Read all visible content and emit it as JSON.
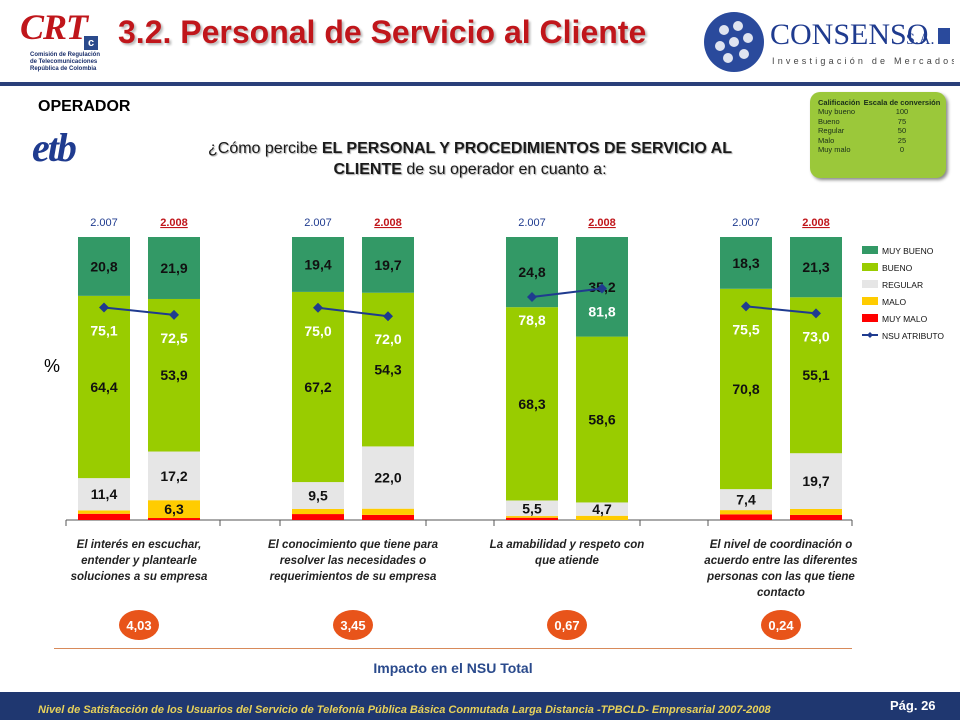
{
  "header": {
    "title": "3.2. Personal de Servicio al Cliente",
    "crt_logo_text": "CRT",
    "crt_logo_box": "c",
    "crt_caption": "Comisión de Regulación de Telecomunicaciones República de Colombia",
    "consenso_name": "CONSENSO",
    "consenso_suffix": "S.A.",
    "consenso_tagline": "Investigación de Mercados"
  },
  "operator": {
    "label": "OPERADOR",
    "logo_text": "etb"
  },
  "question": {
    "prefix": "¿Cómo percibe ",
    "bold_part": "EL PERSONAL Y PROCEDIMIENTOS DE SERVICIO AL CLIENTE",
    "suffix": " de su operador en cuanto a:"
  },
  "scale_table": {
    "headers": [
      "Calificación",
      "Escala de conversión"
    ],
    "rows": [
      [
        "Muy bueno",
        "100"
      ],
      [
        "Bueno",
        "75"
      ],
      [
        "Regular",
        "50"
      ],
      [
        "Malo",
        "25"
      ],
      [
        "Muy malo",
        "0"
      ]
    ]
  },
  "colors": {
    "muy_bueno": "#339966",
    "bueno": "#99cc00",
    "regular": "#e6e6e6",
    "malo": "#ffcc00",
    "muy_malo": "#ff0000",
    "nsu_line": "#1f3b8f",
    "impact_circle": "#e8541a",
    "title_red": "#c0161b"
  },
  "chart_data": {
    "type": "bar",
    "stacked": true,
    "ylabel": "%",
    "ylim": [
      0,
      100
    ],
    "years": [
      "2.007",
      "2.008"
    ],
    "legend": [
      "MUY BUENO",
      "BUENO",
      "REGULAR",
      "MALO",
      "MUY MALO",
      "NSU ATRIBUTO"
    ],
    "legend_position": "right",
    "groups": [
      {
        "label": "El interés en escuchar, entender y plantearle soluciones a su empresa",
        "impact": "4,03",
        "bars": [
          {
            "year": "2.007",
            "muy_bueno": 20.8,
            "bueno": 64.4,
            "regular": 11.4,
            "malo": 1.2,
            "muy_malo": 2.2,
            "nsu": 75.1,
            "labels": {
              "muy_bueno": "20,8",
              "bueno": "64,4",
              "regular": "11,4",
              "nsu": "75,1"
            }
          },
          {
            "year": "2.008",
            "muy_bueno": 21.9,
            "bueno": 53.9,
            "regular": 17.2,
            "malo": 6.3,
            "muy_malo": 0.7,
            "nsu": 72.5,
            "labels": {
              "muy_bueno": "21,9",
              "bueno": "53,9",
              "regular": "17,2",
              "malo": "6,3",
              "nsu": "72,5"
            }
          }
        ]
      },
      {
        "label": "El conocimiento que tiene para resolver las necesidades o requerimientos de su empresa",
        "impact": "3,45",
        "bars": [
          {
            "year": "2.007",
            "muy_bueno": 19.4,
            "bueno": 67.2,
            "regular": 9.5,
            "malo": 1.8,
            "muy_malo": 2.1,
            "nsu": 75.0,
            "labels": {
              "muy_bueno": "19,4",
              "bueno": "67,2",
              "regular": "9,5",
              "nsu": "75,0"
            }
          },
          {
            "year": "2.008",
            "muy_bueno": 19.7,
            "bueno": 54.3,
            "regular": 22.0,
            "malo": 2.2,
            "muy_malo": 1.8,
            "nsu": 72.0,
            "labels": {
              "muy_bueno": "19,7",
              "bueno": "54,3",
              "regular": "22,0",
              "nsu": "72,0"
            }
          }
        ]
      },
      {
        "label": "La amabilidad y respeto con que atiende",
        "impact": "0,67",
        "bars": [
          {
            "year": "2.007",
            "muy_bueno": 24.8,
            "bueno": 68.3,
            "regular": 5.5,
            "malo": 0.6,
            "muy_malo": 0.8,
            "nsu": 78.8,
            "labels": {
              "muy_bueno": "24,8",
              "bueno": "68,3",
              "regular": "5,5",
              "nsu": "78,8"
            }
          },
          {
            "year": "2.008",
            "muy_bueno": 35.2,
            "bueno": 58.6,
            "regular": 4.7,
            "malo": 1.5,
            "muy_malo": 0.0,
            "nsu": 81.8,
            "labels": {
              "muy_bueno": "35,2",
              "bueno": "58,6",
              "regular": "4,7",
              "nsu": "81,8"
            }
          }
        ]
      },
      {
        "label": "El nivel de coordinación o acuerdo entre las diferentes personas con las que tiene contacto",
        "impact": "0,24",
        "bars": [
          {
            "year": "2.007",
            "muy_bueno": 18.3,
            "bueno": 70.8,
            "regular": 7.4,
            "malo": 1.5,
            "muy_malo": 2.0,
            "nsu": 75.5,
            "labels": {
              "muy_bueno": "18,3",
              "bueno": "70,8",
              "regular": "7,4",
              "nsu": "75,5"
            }
          },
          {
            "year": "2.008",
            "muy_bueno": 21.3,
            "bueno": 55.1,
            "regular": 19.7,
            "malo": 2.1,
            "muy_malo": 1.8,
            "nsu": 73.0,
            "labels": {
              "muy_bueno": "21,3",
              "bueno": "55,1",
              "regular": "19,7",
              "nsu": "73,0"
            }
          }
        ]
      }
    ]
  },
  "impact_label": "Impacto en el NSU Total",
  "footer": {
    "text": "Nivel de Satisfacción de los Usuarios del Servicio de Telefonía Pública Básica Conmutada Larga Distancia -TPBCLD- Empresarial 2007-2008",
    "page": "Pág. 26"
  }
}
